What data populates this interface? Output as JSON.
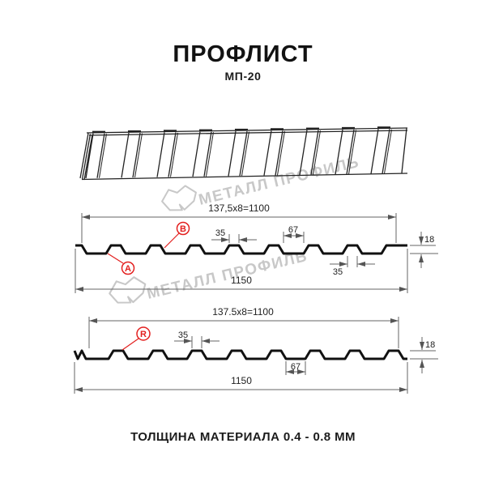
{
  "header": {
    "title": "ПРОФЛИСТ",
    "subtitle": "МП-20"
  },
  "watermark": {
    "text": "МЕТАЛЛ ПРОФИЛЬ"
  },
  "section_ab": {
    "dim_module": "137,5x8=1100",
    "dim_rib_top": "35",
    "dim_valley": "67",
    "dim_height": "18",
    "dim_rib_top_2": "35",
    "dim_overall": "1150",
    "label_a": "А",
    "label_b": "В"
  },
  "section_r": {
    "dim_module": "137.5x8=1100",
    "dim_rib_top": "35",
    "dim_valley": "67",
    "dim_height": "18",
    "dim_overall": "1150",
    "label_r": "R"
  },
  "footer": {
    "thickness_note": "ТОЛЩИНА МАТЕРИАЛА 0.4 - 0.8 ММ"
  },
  "colors": {
    "accent_red": "#e3201f",
    "line": "#111111",
    "watermark": "#c8c8c8"
  }
}
